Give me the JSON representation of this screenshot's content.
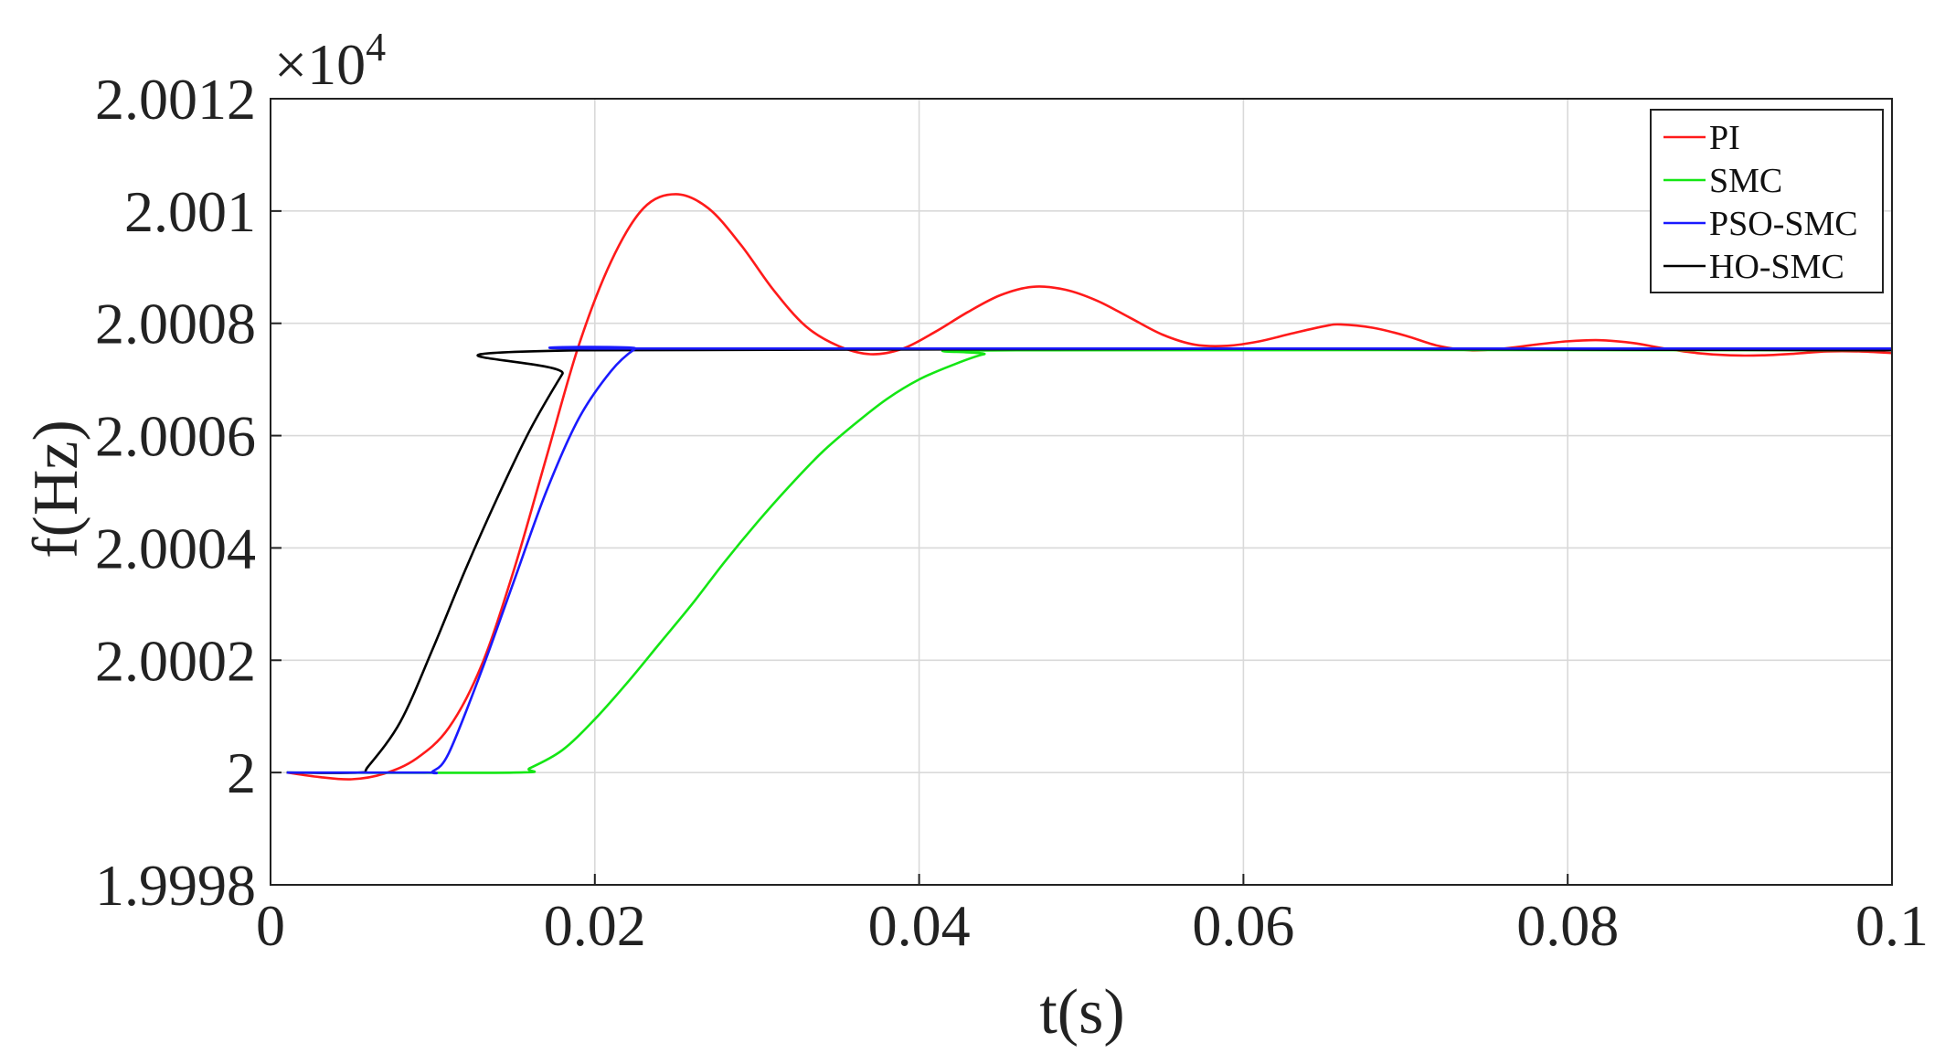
{
  "chart_data": {
    "type": "line",
    "xlabel": "t(s)",
    "ylabel": "f(Hz)",
    "y_multiplier_label": "×10",
    "y_multiplier_exponent": "4",
    "xlim": [
      0,
      0.1
    ],
    "ylim": [
      19998,
      20012
    ],
    "x_ticks": [
      0,
      0.02,
      0.04,
      0.06,
      0.08,
      0.1
    ],
    "x_tick_labels": [
      "0",
      "0.02",
      "0.04",
      "0.06",
      "0.08",
      "0.1"
    ],
    "y_ticks": [
      19998,
      20000,
      20002,
      20004,
      20006,
      20008,
      20010,
      20012
    ],
    "y_tick_labels": [
      "1.9998",
      "2",
      "2.0002",
      "2.0004",
      "2.0006",
      "2.0008",
      "2.001",
      "2.0012"
    ],
    "grid": true,
    "legend_position": "top-right",
    "series": [
      {
        "name": "PI",
        "color": "#ff1a1a",
        "points": [
          [
            0.001,
            20000.0
          ],
          [
            0.003,
            19999.92
          ],
          [
            0.005,
            19999.88
          ],
          [
            0.007,
            19999.98
          ],
          [
            0.009,
            20000.25
          ],
          [
            0.011,
            20000.8
          ],
          [
            0.013,
            20001.9
          ],
          [
            0.015,
            20003.6
          ],
          [
            0.017,
            20005.6
          ],
          [
            0.019,
            20007.6
          ],
          [
            0.021,
            20009.1
          ],
          [
            0.023,
            20010.05
          ],
          [
            0.025,
            20010.3
          ],
          [
            0.027,
            20010.05
          ],
          [
            0.029,
            20009.4
          ],
          [
            0.031,
            20008.6
          ],
          [
            0.033,
            20007.95
          ],
          [
            0.035,
            20007.6
          ],
          [
            0.037,
            20007.45
          ],
          [
            0.039,
            20007.55
          ],
          [
            0.041,
            20007.85
          ],
          [
            0.043,
            20008.2
          ],
          [
            0.045,
            20008.5
          ],
          [
            0.047,
            20008.65
          ],
          [
            0.049,
            20008.6
          ],
          [
            0.051,
            20008.4
          ],
          [
            0.053,
            20008.1
          ],
          [
            0.055,
            20007.8
          ],
          [
            0.057,
            20007.62
          ],
          [
            0.059,
            20007.6
          ],
          [
            0.061,
            20007.68
          ],
          [
            0.063,
            20007.82
          ],
          [
            0.065,
            20007.95
          ],
          [
            0.066,
            20007.98
          ],
          [
            0.068,
            20007.92
          ],
          [
            0.07,
            20007.78
          ],
          [
            0.072,
            20007.6
          ],
          [
            0.074,
            20007.52
          ],
          [
            0.076,
            20007.55
          ],
          [
            0.078,
            20007.62
          ],
          [
            0.08,
            20007.68
          ],
          [
            0.082,
            20007.7
          ],
          [
            0.084,
            20007.65
          ],
          [
            0.086,
            20007.55
          ],
          [
            0.088,
            20007.47
          ],
          [
            0.09,
            20007.43
          ],
          [
            0.092,
            20007.43
          ],
          [
            0.094,
            20007.46
          ],
          [
            0.096,
            20007.5
          ],
          [
            0.098,
            20007.5
          ],
          [
            0.1,
            20007.47
          ]
        ]
      },
      {
        "name": "SMC",
        "color": "#14e614",
        "points": [
          [
            0.001,
            20000.0
          ],
          [
            0.015,
            20000.0
          ],
          [
            0.016,
            20000.08
          ],
          [
            0.018,
            20000.4
          ],
          [
            0.02,
            20000.95
          ],
          [
            0.022,
            20001.6
          ],
          [
            0.024,
            20002.3
          ],
          [
            0.026,
            20003.0
          ],
          [
            0.028,
            20003.75
          ],
          [
            0.03,
            20004.45
          ],
          [
            0.032,
            20005.1
          ],
          [
            0.034,
            20005.7
          ],
          [
            0.036,
            20006.2
          ],
          [
            0.038,
            20006.65
          ],
          [
            0.04,
            20007.0
          ],
          [
            0.042,
            20007.25
          ],
          [
            0.044,
            20007.45
          ],
          [
            0.046,
            20007.52
          ],
          [
            0.1,
            20007.52
          ]
        ]
      },
      {
        "name": "PSO-SMC",
        "color": "#1a1aff",
        "points": [
          [
            0.001,
            20000.0
          ],
          [
            0.0095,
            20000.0
          ],
          [
            0.01,
            20000.02
          ],
          [
            0.011,
            20000.35
          ],
          [
            0.013,
            20001.8
          ],
          [
            0.015,
            20003.4
          ],
          [
            0.017,
            20005.0
          ],
          [
            0.019,
            20006.3
          ],
          [
            0.021,
            20007.15
          ],
          [
            0.0225,
            20007.55
          ],
          [
            0.023,
            20007.55
          ],
          [
            0.1,
            20007.55
          ]
        ]
      },
      {
        "name": "HO-SMC",
        "color": "#000000",
        "points": [
          [
            0.001,
            20000.0
          ],
          [
            0.0055,
            20000.0
          ],
          [
            0.006,
            20000.1
          ],
          [
            0.008,
            20000.9
          ],
          [
            0.01,
            20002.2
          ],
          [
            0.012,
            20003.6
          ],
          [
            0.014,
            20004.9
          ],
          [
            0.016,
            20006.1
          ],
          [
            0.018,
            20007.1
          ],
          [
            0.019,
            20007.52
          ],
          [
            0.1,
            20007.52
          ]
        ]
      }
    ]
  }
}
